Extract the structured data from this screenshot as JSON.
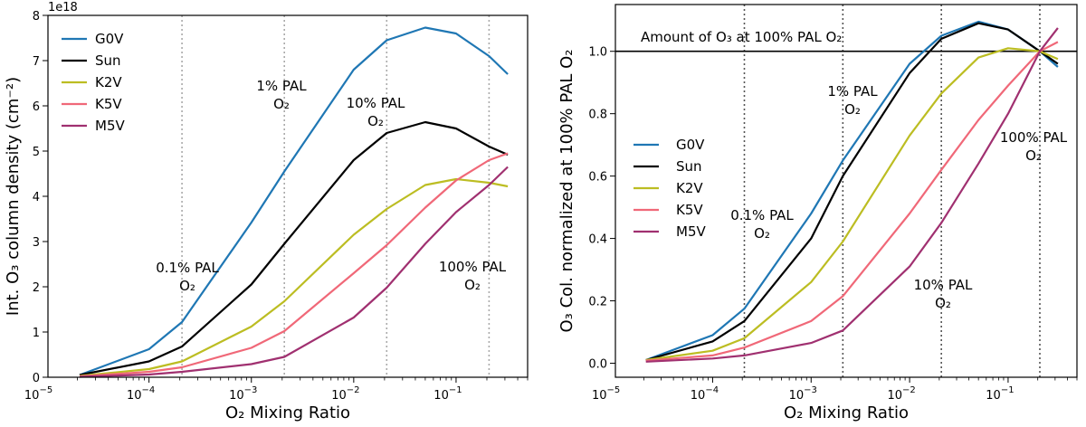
{
  "chart_data": [
    {
      "type": "line",
      "id": "left",
      "x_scale": "log",
      "xlim": [
        1.03e-05,
        0.5
      ],
      "ylim": [
        0,
        8
      ],
      "y_offset_label": "1e18",
      "xlabel": "O₂ Mixing Ratio",
      "ylabel": "Int. O₃ column density (cm⁻²)",
      "x_ticks": [
        {
          "value": 1e-05,
          "base": "10",
          "exp": "−5"
        },
        {
          "value": 0.0001,
          "base": "10",
          "exp": "−4"
        },
        {
          "value": 0.001,
          "base": "10",
          "exp": "−3"
        },
        {
          "value": 0.01,
          "base": "10",
          "exp": "−2"
        },
        {
          "value": 0.1,
          "base": "10",
          "exp": "−1"
        }
      ],
      "y_ticks": [
        {
          "value": 0,
          "label": "0"
        },
        {
          "value": 1,
          "label": "1"
        },
        {
          "value": 2,
          "label": "2"
        },
        {
          "value": 3,
          "label": "3"
        },
        {
          "value": 4,
          "label": "4"
        },
        {
          "value": 5,
          "label": "5"
        },
        {
          "value": 6,
          "label": "6"
        },
        {
          "value": 7,
          "label": "7"
        },
        {
          "value": 8,
          "label": "8"
        }
      ],
      "vlines": [
        0.00021,
        0.0021,
        0.021,
        0.21
      ],
      "hline": null,
      "legend": {
        "position": "top-left"
      },
      "series": [
        {
          "name": "G0V",
          "color": "#1f77b4",
          "x": [
            2.1e-05,
            0.0001,
            0.00021,
            0.001,
            0.0021,
            0.01,
            0.021,
            0.05,
            0.1,
            0.21,
            0.32
          ],
          "y": [
            0.05,
            0.62,
            1.22,
            3.42,
            4.55,
            6.8,
            7.45,
            7.73,
            7.6,
            7.1,
            6.7
          ]
        },
        {
          "name": "Sun",
          "color": "#000000",
          "x": [
            2.1e-05,
            0.0001,
            0.00021,
            0.001,
            0.0021,
            0.01,
            0.021,
            0.05,
            0.1,
            0.21,
            0.32
          ],
          "y": [
            0.05,
            0.35,
            0.68,
            2.05,
            2.95,
            4.8,
            5.4,
            5.64,
            5.5,
            5.1,
            4.92
          ]
        },
        {
          "name": "K2V",
          "color": "#bcbd22",
          "x": [
            2.1e-05,
            0.0001,
            0.00021,
            0.001,
            0.0021,
            0.01,
            0.021,
            0.05,
            0.1,
            0.21,
            0.32
          ],
          "y": [
            0.03,
            0.18,
            0.35,
            1.12,
            1.68,
            3.15,
            3.72,
            4.25,
            4.38,
            4.3,
            4.22
          ]
        },
        {
          "name": "K5V",
          "color": "#f06878",
          "x": [
            2.1e-05,
            0.0001,
            0.00021,
            0.001,
            0.0021,
            0.01,
            0.021,
            0.05,
            0.1,
            0.21,
            0.32
          ],
          "y": [
            0.02,
            0.12,
            0.22,
            0.65,
            1.02,
            2.3,
            2.92,
            3.75,
            4.35,
            4.8,
            4.95
          ]
        },
        {
          "name": "M5V",
          "color": "#a03070",
          "x": [
            2.1e-05,
            0.0001,
            0.00021,
            0.001,
            0.0021,
            0.01,
            0.021,
            0.05,
            0.1,
            0.21,
            0.32
          ],
          "y": [
            0.01,
            0.06,
            0.12,
            0.29,
            0.45,
            1.32,
            1.98,
            2.95,
            3.65,
            4.25,
            4.65
          ]
        }
      ],
      "annotations": [
        {
          "line1": "0.1% PAL",
          "line2": "O₂"
        },
        {
          "line1": "1% PAL",
          "line2": "O₂"
        },
        {
          "line1": "10% PAL",
          "line2": "O₂"
        },
        {
          "line1": "100% PAL",
          "line2": "O₂"
        }
      ]
    },
    {
      "type": "line",
      "id": "right",
      "x_scale": "log",
      "xlim": [
        1.03e-05,
        0.5
      ],
      "ylim": [
        -0.045,
        1.15
      ],
      "xlabel": "O₂ Mixing Ratio",
      "ylabel": "O₃ Col. normalized at 100% PAL O₂",
      "x_ticks": [
        {
          "value": 1e-05,
          "base": "10",
          "exp": "−5"
        },
        {
          "value": 0.0001,
          "base": "10",
          "exp": "−4"
        },
        {
          "value": 0.001,
          "base": "10",
          "exp": "−3"
        },
        {
          "value": 0.01,
          "base": "10",
          "exp": "−2"
        },
        {
          "value": 0.1,
          "base": "10",
          "exp": "−1"
        }
      ],
      "y_ticks": [
        {
          "value": 0.0,
          "label": "0.0"
        },
        {
          "value": 0.2,
          "label": "0.2"
        },
        {
          "value": 0.4,
          "label": "0.4"
        },
        {
          "value": 0.6,
          "label": "0.6"
        },
        {
          "value": 0.8,
          "label": "0.8"
        },
        {
          "value": 1.0,
          "label": "1.0"
        }
      ],
      "vlines": [
        0.00021,
        0.0021,
        0.021,
        0.21
      ],
      "hline": {
        "value": 1.0,
        "label": "Amount of O₃ at 100% PAL O₂"
      },
      "legend": {
        "position": "center-left"
      },
      "series": [
        {
          "name": "G0V",
          "color": "#1f77b4",
          "x": [
            2.1e-05,
            0.0001,
            0.00021,
            0.001,
            0.0021,
            0.01,
            0.021,
            0.05,
            0.1,
            0.21,
            0.32
          ],
          "y": [
            0.01,
            0.09,
            0.175,
            0.48,
            0.65,
            0.96,
            1.05,
            1.095,
            1.07,
            1.0,
            0.95
          ]
        },
        {
          "name": "Sun",
          "color": "#000000",
          "x": [
            2.1e-05,
            0.0001,
            0.00021,
            0.001,
            0.0021,
            0.01,
            0.021,
            0.05,
            0.1,
            0.21,
            0.32
          ],
          "y": [
            0.01,
            0.07,
            0.135,
            0.4,
            0.6,
            0.93,
            1.04,
            1.09,
            1.07,
            1.0,
            0.96
          ]
        },
        {
          "name": "K2V",
          "color": "#bcbd22",
          "x": [
            2.1e-05,
            0.0001,
            0.00021,
            0.001,
            0.0021,
            0.01,
            0.021,
            0.05,
            0.1,
            0.21,
            0.32
          ],
          "y": [
            0.01,
            0.04,
            0.08,
            0.26,
            0.39,
            0.73,
            0.865,
            0.98,
            1.01,
            1.0,
            0.975
          ]
        },
        {
          "name": "K5V",
          "color": "#f06878",
          "x": [
            2.1e-05,
            0.0001,
            0.00021,
            0.001,
            0.0021,
            0.01,
            0.021,
            0.05,
            0.1,
            0.21,
            0.32
          ],
          "y": [
            0.008,
            0.025,
            0.05,
            0.135,
            0.215,
            0.48,
            0.62,
            0.78,
            0.89,
            1.0,
            1.03
          ]
        },
        {
          "name": "M5V",
          "color": "#a03070",
          "x": [
            2.1e-05,
            0.0001,
            0.00021,
            0.001,
            0.0021,
            0.01,
            0.021,
            0.05,
            0.1,
            0.21,
            0.32
          ],
          "y": [
            0.005,
            0.015,
            0.025,
            0.065,
            0.105,
            0.31,
            0.45,
            0.64,
            0.8,
            1.0,
            1.075
          ]
        }
      ],
      "annotations": [
        {
          "line1": "0.1% PAL",
          "line2": "O₂"
        },
        {
          "line1": "1% PAL",
          "line2": "O₂"
        },
        {
          "line1": "10% PAL",
          "line2": "O₂"
        },
        {
          "line1": "100% PAL",
          "line2": "O₂"
        }
      ]
    }
  ]
}
